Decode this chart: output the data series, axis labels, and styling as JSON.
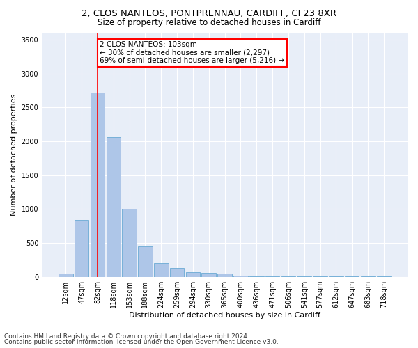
{
  "title_line1": "2, CLOS NANTEOS, PONTPRENNAU, CARDIFF, CF23 8XR",
  "title_line2": "Size of property relative to detached houses in Cardiff",
  "xlabel": "Distribution of detached houses by size in Cardiff",
  "ylabel": "Number of detached properties",
  "bar_color": "#aec6e8",
  "bar_edge_color": "#6aaad4",
  "bg_color": "#e8eef8",
  "annotation_line1": "2 CLOS NANTEOS: 103sqm",
  "annotation_line2": "← 30% of detached houses are smaller (2,297)",
  "annotation_line3": "69% of semi-detached houses are larger (5,216) →",
  "annotation_box_color": "white",
  "annotation_box_edge": "red",
  "vline_color": "red",
  "vline_x_index": 2,
  "categories": [
    "12sqm",
    "47sqm",
    "82sqm",
    "118sqm",
    "153sqm",
    "188sqm",
    "224sqm",
    "259sqm",
    "294sqm",
    "330sqm",
    "365sqm",
    "400sqm",
    "436sqm",
    "471sqm",
    "506sqm",
    "541sqm",
    "577sqm",
    "612sqm",
    "647sqm",
    "683sqm",
    "718sqm"
  ],
  "values": [
    50,
    840,
    2720,
    2060,
    1000,
    450,
    200,
    130,
    70,
    60,
    50,
    15,
    10,
    5,
    5,
    5,
    5,
    5,
    5,
    5,
    5
  ],
  "ylim": [
    0,
    3600
  ],
  "yticks": [
    0,
    500,
    1000,
    1500,
    2000,
    2500,
    3000,
    3500
  ],
  "footer_line1": "Contains HM Land Registry data © Crown copyright and database right 2024.",
  "footer_line2": "Contains public sector information licensed under the Open Government Licence v3.0.",
  "title_fontsize": 9.5,
  "subtitle_fontsize": 8.5,
  "tick_fontsize": 7,
  "label_fontsize": 8,
  "annotation_fontsize": 7.5,
  "footer_fontsize": 6.5
}
